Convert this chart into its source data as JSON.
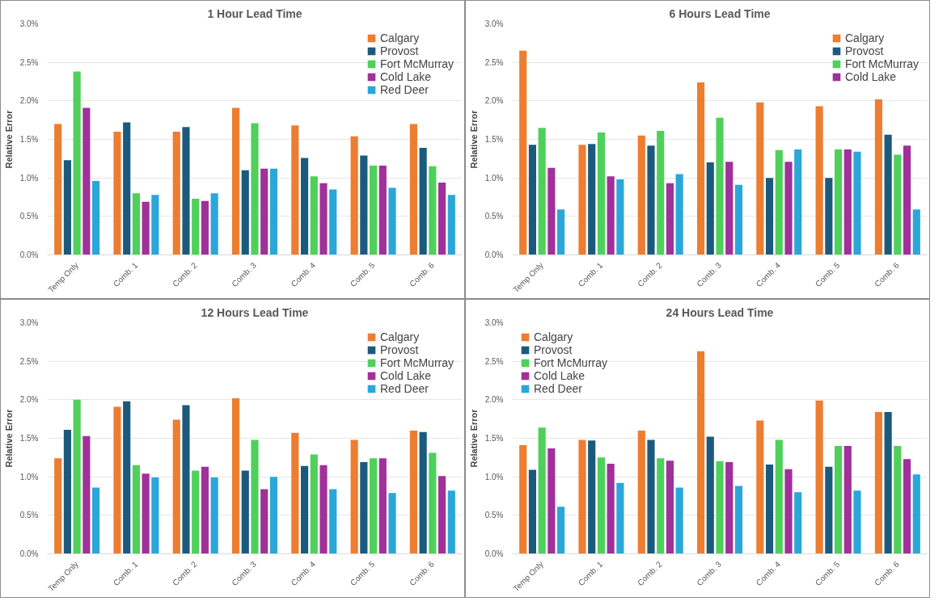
{
  "chart_data": [
    {
      "type": "bar",
      "title": "1 Hour Lead Time",
      "ylabel": "Relative Error",
      "categories": [
        "Temp Only",
        "Comb. 1",
        "Comb. 2",
        "Comb. 3",
        "Comb. 4",
        "Comb. 5",
        "Comb. 6"
      ],
      "ylim": [
        0,
        3.0
      ],
      "yticks": [
        {
          "value": 0,
          "label": "0.0%"
        },
        {
          "value": 0.5,
          "label": "0.5%"
        },
        {
          "value": 1.0,
          "label": "1.0%"
        },
        {
          "value": 1.5,
          "label": "1.5%"
        },
        {
          "value": 2.0,
          "label": "2.0%"
        },
        {
          "value": 2.5,
          "label": "2.5%"
        },
        {
          "value": 3.0,
          "label": "3.0%"
        }
      ],
      "grid": "y",
      "legend": "top right",
      "series": [
        {
          "name": "Calgary",
          "color": "#ed7d31",
          "values": [
            1.7,
            1.6,
            1.6,
            1.91,
            1.68,
            1.54,
            1.7
          ]
        },
        {
          "name": "Provost",
          "color": "#1b5a7c",
          "values": [
            1.23,
            1.72,
            1.66,
            1.1,
            1.26,
            1.29,
            1.39
          ]
        },
        {
          "name": "Fort McMurray",
          "color": "#4fd05a",
          "values": [
            2.38,
            0.8,
            0.73,
            1.71,
            1.02,
            1.16,
            1.15
          ]
        },
        {
          "name": "Cold Lake",
          "color": "#a0309a",
          "values": [
            1.91,
            0.69,
            0.7,
            1.12,
            0.93,
            1.16,
            0.94
          ]
        },
        {
          "name": "Red Deer",
          "color": "#2aa7d8",
          "values": [
            0.96,
            0.78,
            0.8,
            1.12,
            0.85,
            0.87,
            0.78
          ]
        }
      ]
    },
    {
      "type": "bar",
      "title": "6 Hours Lead Time",
      "ylabel": "Relative Error",
      "categories": [
        "Temp Only",
        "Comb. 1",
        "Comb. 2",
        "Comb. 3",
        "Comb. 4",
        "Comb. 5",
        "Comb. 6"
      ],
      "ylim": [
        0,
        3.0
      ],
      "yticks": [
        {
          "value": 0,
          "label": "0.0%"
        },
        {
          "value": 0.5,
          "label": "0.5%"
        },
        {
          "value": 1.0,
          "label": "1.0%"
        },
        {
          "value": 1.5,
          "label": "1.5%"
        },
        {
          "value": 2.0,
          "label": "2.0%"
        },
        {
          "value": 2.5,
          "label": "2.5%"
        },
        {
          "value": 3.0,
          "label": "3.0%"
        }
      ],
      "grid": "y",
      "legend": "top right",
      "series": [
        {
          "name": "Calgary",
          "color": "#ed7d31",
          "values": [
            2.65,
            1.43,
            1.55,
            2.24,
            1.98,
            1.93,
            2.02
          ]
        },
        {
          "name": "Provost",
          "color": "#1b5a7c",
          "values": [
            1.43,
            1.44,
            1.42,
            1.2,
            1.0,
            1.0,
            1.56
          ]
        },
        {
          "name": "Fort McMurray",
          "color": "#4fd05a",
          "values": [
            1.65,
            1.59,
            1.61,
            1.78,
            1.36,
            1.37,
            1.3
          ]
        },
        {
          "name": "Cold Lake",
          "color": "#a0309a",
          "values": [
            1.13,
            1.02,
            0.93,
            1.21,
            1.21,
            1.37,
            1.42
          ]
        },
        {
          "color": "#2aa7d8",
          "values": [
            0.59,
            0.98,
            1.05,
            0.91,
            1.37,
            1.34,
            0.59
          ]
        }
      ]
    },
    {
      "type": "bar",
      "title": "12 Hours Lead Time",
      "ylabel": "Relative Error",
      "categories": [
        "Temp Only",
        "Comb. 1",
        "Comb. 2",
        "Comb. 3",
        "Comb. 4",
        "Comb. 5",
        "Comb. 6"
      ],
      "ylim": [
        0,
        3.0
      ],
      "yticks": [
        {
          "value": 0,
          "label": "0.0%"
        },
        {
          "value": 0.5,
          "label": "0.5%"
        },
        {
          "value": 1.0,
          "label": "1.0%"
        },
        {
          "value": 1.5,
          "label": "1.5%"
        },
        {
          "value": 2.0,
          "label": "2.0%"
        },
        {
          "value": 2.5,
          "label": "2.5%"
        },
        {
          "value": 3.0,
          "label": "3.0%"
        }
      ],
      "grid": "y",
      "legend": "top right",
      "series": [
        {
          "name": "Calgary",
          "color": "#ed7d31",
          "values": [
            1.24,
            1.91,
            1.74,
            2.02,
            1.57,
            1.48,
            1.6
          ]
        },
        {
          "name": "Provost",
          "color": "#1b5a7c",
          "values": [
            1.61,
            1.98,
            1.93,
            1.08,
            1.14,
            1.19,
            1.58
          ]
        },
        {
          "name": "Fort McMurray",
          "color": "#4fd05a",
          "values": [
            2.0,
            1.15,
            1.08,
            1.48,
            1.29,
            1.24,
            1.31
          ]
        },
        {
          "name": "Cold Lake",
          "color": "#a0309a",
          "values": [
            1.53,
            1.04,
            1.13,
            0.84,
            1.15,
            1.24,
            1.01
          ]
        },
        {
          "name": "Red Deer",
          "color": "#2aa7d8",
          "values": [
            0.86,
            0.99,
            0.99,
            1.0,
            0.84,
            0.79,
            0.82
          ]
        }
      ]
    },
    {
      "type": "bar",
      "title": "24 Hours Lead Time",
      "ylabel": "Relative Error",
      "categories": [
        "Temp Only",
        "Comb. 1",
        "Comb. 2",
        "Comb. 3",
        "Comb. 4",
        "Comb. 5",
        "Comb. 6"
      ],
      "ylim": [
        0,
        3.0
      ],
      "yticks": [
        {
          "value": 0,
          "label": "0.0%"
        },
        {
          "value": 0.5,
          "label": "0.5%"
        },
        {
          "value": 1.0,
          "label": "1.0%"
        },
        {
          "value": 1.5,
          "label": "1.5%"
        },
        {
          "value": 2.0,
          "label": "2.0%"
        },
        {
          "value": 2.5,
          "label": "2.5%"
        },
        {
          "value": 3.0,
          "label": "3.0%"
        }
      ],
      "grid": "y",
      "legend": "top left",
      "series": [
        {
          "name": "Calgary",
          "color": "#ed7d31",
          "values": [
            1.41,
            1.48,
            1.6,
            2.63,
            1.73,
            1.99,
            1.84
          ]
        },
        {
          "name": "Provost",
          "color": "#1b5a7c",
          "values": [
            1.09,
            1.47,
            1.48,
            1.52,
            1.16,
            1.13,
            1.84
          ]
        },
        {
          "name": "Fort McMurray",
          "color": "#4fd05a",
          "values": [
            1.64,
            1.25,
            1.24,
            1.2,
            1.48,
            1.4,
            1.4
          ]
        },
        {
          "name": "Cold Lake",
          "color": "#a0309a",
          "values": [
            1.37,
            1.17,
            1.21,
            1.19,
            1.1,
            1.4,
            1.23
          ]
        },
        {
          "name": "Red Deer",
          "color": "#2aa7d8",
          "values": [
            0.61,
            0.92,
            0.86,
            0.88,
            0.8,
            0.82,
            1.03
          ]
        }
      ]
    }
  ]
}
